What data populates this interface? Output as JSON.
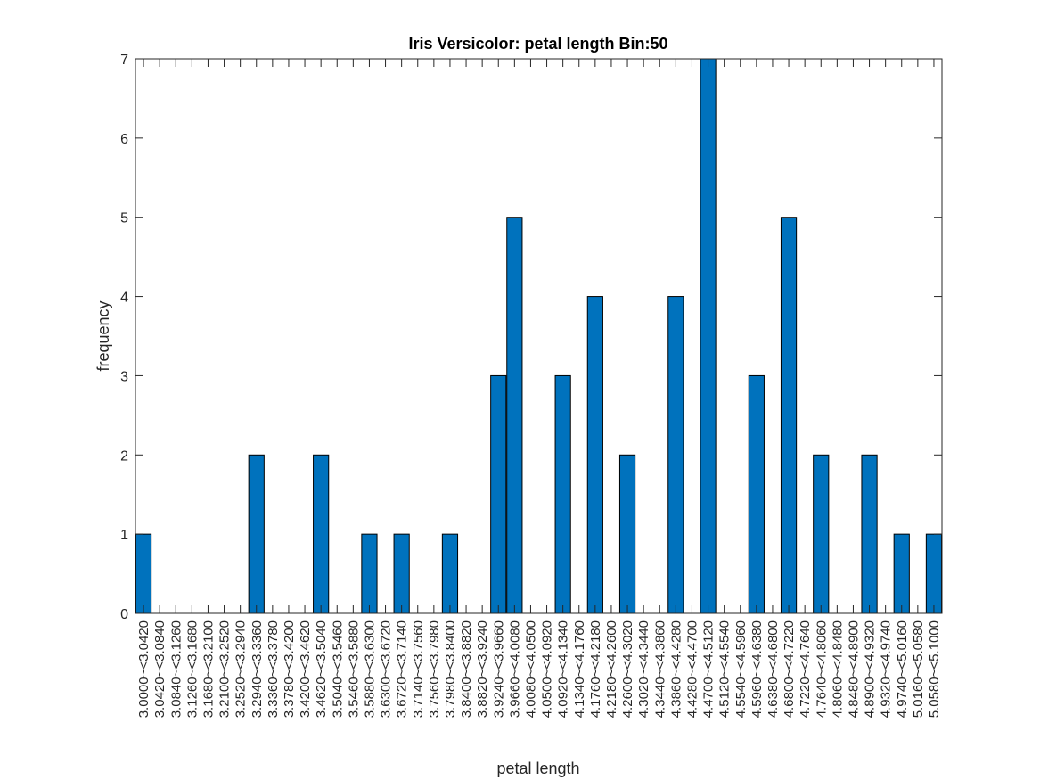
{
  "chart_data": {
    "type": "bar",
    "title": "Iris Versicolor: petal length Bin:50",
    "xlabel": "petal length",
    "ylabel": "frequency",
    "ylim": [
      0,
      7
    ],
    "yticks": [
      "0",
      "1",
      "2",
      "3",
      "4",
      "5",
      "6",
      "7"
    ],
    "bar_color": "#0072BD",
    "categories": [
      "3.0000~<3.0420",
      "3.0420~<3.0840",
      "3.0840~<3.1260",
      "3.1260~<3.1680",
      "3.1680~<3.2100",
      "3.2100~<3.2520",
      "3.2520~<3.2940",
      "3.2940~<3.3360",
      "3.3360~<3.3780",
      "3.3780~<3.4200",
      "3.4200~<3.4620",
      "3.4620~<3.5040",
      "3.5040~<3.5460",
      "3.5460~<3.5880",
      "3.5880~<3.6300",
      "3.6300~<3.6720",
      "3.6720~<3.7140",
      "3.7140~<3.7560",
      "3.7560~<3.7980",
      "3.7980~<3.8400",
      "3.8400~<3.8820",
      "3.8820~<3.9240",
      "3.9240~<3.9660",
      "3.9660~<4.0080",
      "4.0080~<4.0500",
      "4.0500~<4.0920",
      "4.0920~<4.1340",
      "4.1340~<4.1760",
      "4.1760~<4.2180",
      "4.2180~<4.2600",
      "4.2600~<4.3020",
      "4.3020~<4.3440",
      "4.3440~<4.3860",
      "4.3860~<4.4280",
      "4.4280~<4.4700",
      "4.4700~<4.5120",
      "4.5120~<4.5540",
      "4.5540~<4.5960",
      "4.5960~<4.6380",
      "4.6380~<4.6800",
      "4.6800~<4.7220",
      "4.7220~<4.7640",
      "4.7640~<4.8060",
      "4.8060~<4.8480",
      "4.8480~<4.8900",
      "4.8900~<4.9320",
      "4.9320~<4.9740",
      "4.9740~<5.0160",
      "5.0160~<5.0580",
      "5.0580~<5.1000"
    ],
    "values": [
      1,
      0,
      0,
      0,
      0,
      0,
      0,
      2,
      0,
      0,
      0,
      2,
      0,
      0,
      1,
      0,
      1,
      0,
      0,
      1,
      0,
      0,
      3,
      5,
      0,
      0,
      3,
      0,
      4,
      0,
      2,
      0,
      0,
      4,
      0,
      7,
      0,
      0,
      3,
      0,
      5,
      0,
      2,
      0,
      0,
      2,
      0,
      1,
      0,
      1
    ],
    "bar_positions": [
      1,
      4,
      5,
      7,
      10,
      12,
      15,
      17,
      18,
      20,
      22,
      23,
      25,
      27,
      29,
      31,
      32,
      34,
      36,
      38,
      39,
      41,
      43,
      44,
      46,
      48,
      49,
      51
    ],
    "bar_values": [
      1,
      2,
      2,
      1,
      1,
      1,
      3,
      5,
      3,
      4,
      2,
      4,
      7,
      3,
      5,
      2,
      2,
      1,
      1,
      0,
      0,
      0,
      0,
      0,
      0,
      0,
      0,
      0
    ],
    "grid": false
  }
}
